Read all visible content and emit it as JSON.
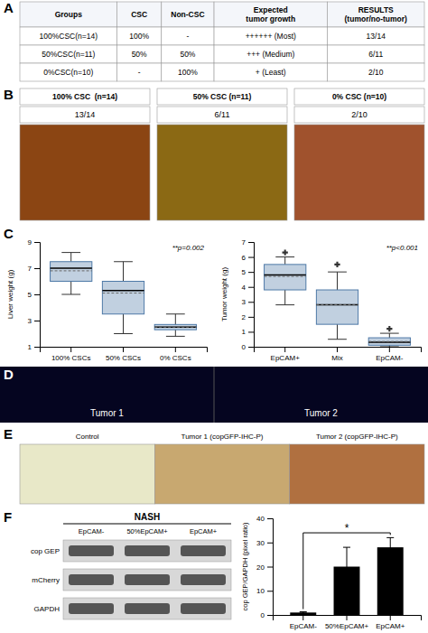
{
  "chart_data": [
    {
      "type": "table",
      "title": "A",
      "headers": [
        "Groups",
        "CSC",
        "Non-CSC",
        "Expected\ntumor growth",
        "RESULTS\n(tumor/no-tumor)"
      ],
      "rows": [
        [
          "100%CSC(n=14)",
          "100%",
          "-",
          "++++++ (Most)",
          "13/14"
        ],
        [
          "50%CSC(n=11)",
          "50%",
          "50%",
          "+++ (Medium)",
          "6/11"
        ],
        [
          "0%CSC(n=10)",
          "-",
          "100%",
          "+ (Least)",
          "2/10"
        ]
      ]
    },
    {
      "type": "image_grid",
      "title": "B",
      "categories": [
        "100% CSC  (n=14)",
        "50% CSC (n=11)",
        "0% CSC (n=10)"
      ],
      "annotations": [
        "13/14",
        "6/11",
        "2/10"
      ],
      "colors": [
        "#8B4513",
        "#8B6914",
        "#A0522D"
      ]
    },
    {
      "type": "box",
      "title": "C",
      "annotations": [
        "**p=0.002"
      ],
      "y_label": "Liver weight (g)",
      "categories": [
        "100% CSCs",
        "50% CSCs",
        "0% CSCs"
      ],
      "boxes": [
        {
          "q1": 6.0,
          "median": 7.0,
          "mean": 6.8,
          "q3": 7.5,
          "whislo": 5.0,
          "whishi": 8.2,
          "fliers": []
        },
        {
          "q1": 3.5,
          "median": 5.3,
          "mean": 5.1,
          "q3": 6.0,
          "whislo": 2.0,
          "whishi": 7.5,
          "fliers": []
        },
        {
          "q1": 2.3,
          "median": 2.5,
          "mean": 2.5,
          "q3": 2.7,
          "whislo": 1.8,
          "whishi": 3.5,
          "fliers": []
        }
      ],
      "ylim": [
        1,
        9
      ],
      "yticks": [
        1,
        3,
        5,
        7,
        9
      ]
    },
    {
      "type": "box",
      "annotations": [
        "**p<0.001"
      ],
      "y_label": "Tumor weight (g)",
      "categories": [
        "EpCAM+",
        "Mix",
        "EpCAM-"
      ],
      "boxes": [
        {
          "q1": 3.8,
          "median": 4.8,
          "mean": 4.7,
          "q3": 5.5,
          "whislo": 2.8,
          "whishi": 6.0,
          "fliers": [
            6.3
          ]
        },
        {
          "q1": 1.5,
          "median": 2.8,
          "mean": 2.8,
          "q3": 3.8,
          "whislo": 0.5,
          "whishi": 5.0,
          "fliers": [
            5.5
          ]
        },
        {
          "q1": 0.1,
          "median": 0.3,
          "mean": 0.35,
          "q3": 0.6,
          "whislo": 0.0,
          "whishi": 0.9,
          "fliers": [
            1.2
          ]
        }
      ],
      "ylim": [
        0,
        7
      ],
      "yticks": [
        0,
        1,
        2,
        3,
        4,
        5,
        6,
        7
      ]
    },
    {
      "type": "micrograph",
      "title": "D",
      "categories": [
        "Tumor 1",
        "Tumor 2"
      ],
      "color": "#050520"
    },
    {
      "type": "ihc_strip",
      "title": "E",
      "categories": [
        "Control",
        "Tumor 1 (copGFP-IHC-P)",
        "Tumor 2 (copGFP-IHC-P)"
      ],
      "colors": [
        "#e8e8c8",
        "#c8a870",
        "#b07040"
      ]
    },
    {
      "type": "blot",
      "title": "F",
      "annotations": [
        "NASH"
      ],
      "categories": [
        "EpCAM-",
        "50%EpCAM+",
        "EpCAM+"
      ],
      "row_labels": [
        "cop GEP",
        "mCherry",
        "GAPDH"
      ]
    },
    {
      "type": "bar",
      "y_label": "cop GEP/GAPDH (pixel ratio)",
      "categories": [
        "EpCAM-",
        "50%EpCAM+",
        "EpCAM+"
      ],
      "values": [
        1.0,
        20.0,
        28.0
      ],
      "errors": [
        0.3,
        8.0,
        4.0
      ],
      "color": "#000000",
      "ylim": [
        0,
        40
      ],
      "yticks": [
        0,
        10,
        20,
        30,
        40
      ],
      "annotations": [
        {
          "text": "*",
          "from": "EpCAM-",
          "to": "EpCAM+",
          "y": 34
        }
      ]
    }
  ]
}
